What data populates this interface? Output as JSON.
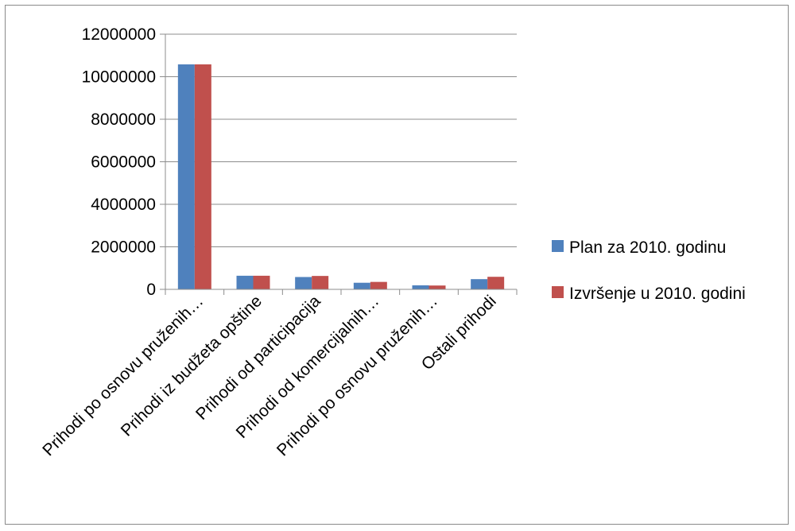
{
  "chart_data": {
    "type": "bar",
    "categories": [
      "Prihodi po osnovu pruženih…",
      "Prihodi iz budžeta opštine",
      "Prihodi od participacija",
      "Prihodi od komercijalnih…",
      "Prihodi po osnovu pruženih…",
      "Ostali prihodi"
    ],
    "series": [
      {
        "name": "Plan za 2010. godinu",
        "color": "#4F81BD",
        "values": [
          10580000,
          640000,
          580000,
          310000,
          190000,
          480000
        ]
      },
      {
        "name": "Izvršenje u 2010. godini",
        "color": "#C0504D",
        "values": [
          10580000,
          640000,
          630000,
          350000,
          180000,
          590000
        ]
      }
    ],
    "yticks": [
      "0",
      "2000000",
      "4000000",
      "6000000",
      "8000000",
      "10000000",
      "12000000"
    ],
    "ylim": [
      0,
      12000000
    ],
    "grid": true,
    "legend_position": "right"
  }
}
